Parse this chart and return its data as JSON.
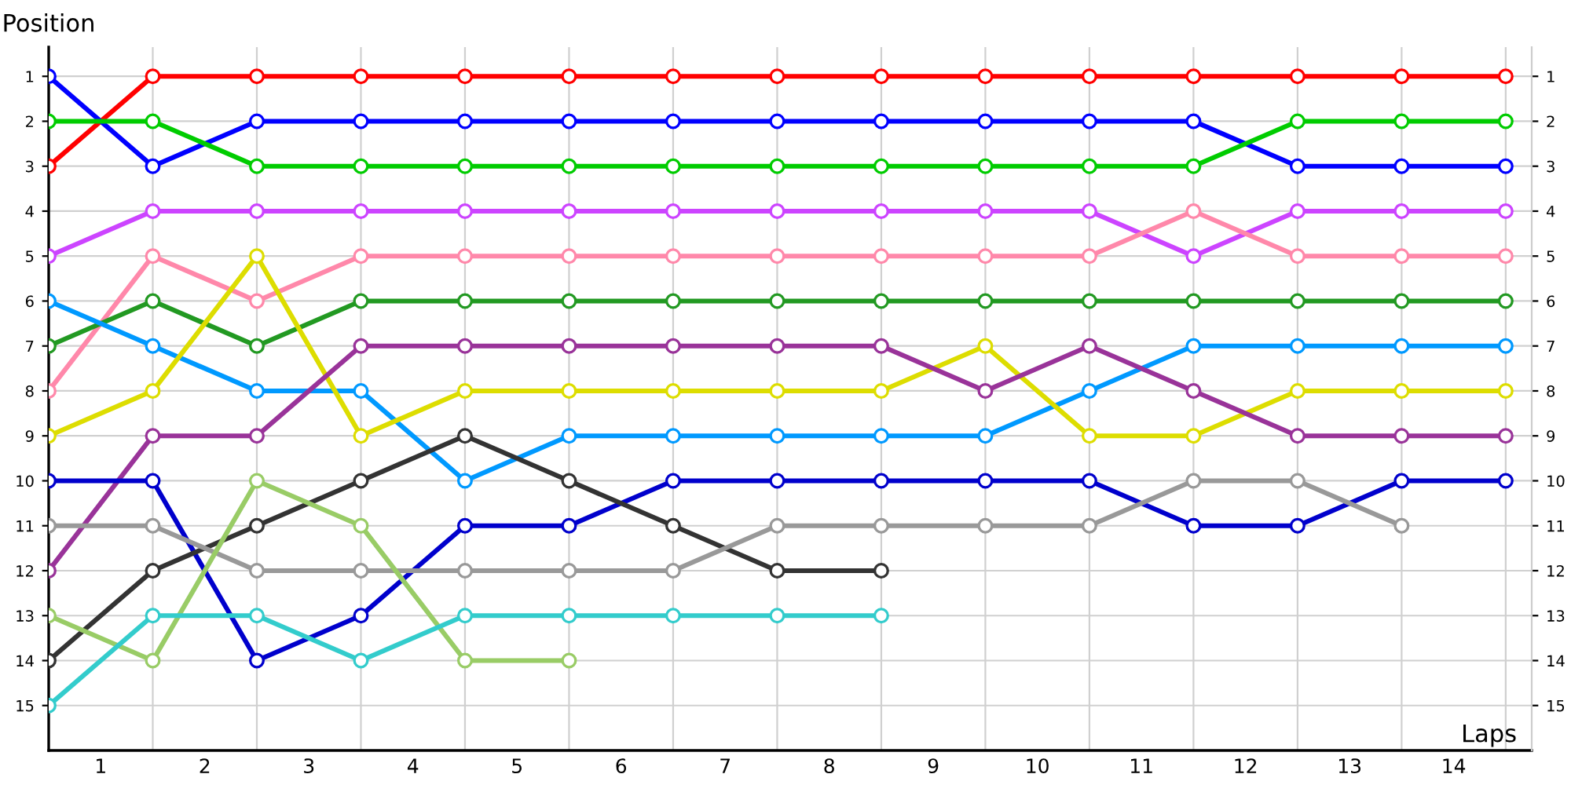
{
  "chart_data": {
    "type": "line",
    "xlabel": "Laps",
    "ylabel": "Position",
    "x": [
      0,
      1,
      2,
      3,
      4,
      5,
      6,
      7,
      8,
      9,
      10,
      11,
      12,
      13,
      14
    ],
    "xlim": [
      0,
      14.25
    ],
    "xticks": [
      {
        "value": 0,
        "label": null
      },
      {
        "value": 0.5,
        "label": "1"
      },
      {
        "value": 1,
        "label": null
      },
      {
        "value": 1.5,
        "label": "2"
      },
      {
        "value": 2,
        "label": null
      },
      {
        "value": 2.5,
        "label": "3"
      },
      {
        "value": 3,
        "label": null
      },
      {
        "value": 3.5,
        "label": "4"
      },
      {
        "value": 4,
        "label": null
      },
      {
        "value": 4.5,
        "label": "5"
      },
      {
        "value": 5,
        "label": null
      },
      {
        "value": 5.5,
        "label": "6"
      },
      {
        "value": 6,
        "label": null
      },
      {
        "value": 6.5,
        "label": "7"
      },
      {
        "value": 7,
        "label": null
      },
      {
        "value": 7.5,
        "label": "8"
      },
      {
        "value": 8,
        "label": null
      },
      {
        "value": 8.5,
        "label": "9"
      },
      {
        "value": 9,
        "label": null
      },
      {
        "value": 9.5,
        "label": "10"
      },
      {
        "value": 10,
        "label": null
      },
      {
        "value": 10.5,
        "label": "11"
      },
      {
        "value": 11,
        "label": null
      },
      {
        "value": 11.5,
        "label": "12"
      },
      {
        "value": 12,
        "label": null
      },
      {
        "value": 12.5,
        "label": "13"
      },
      {
        "value": 13,
        "label": null
      },
      {
        "value": 13.5,
        "label": "14"
      },
      {
        "value": 14,
        "label": null
      }
    ],
    "ylim": [
      16,
      0.35
    ],
    "yticks": [
      1,
      2,
      3,
      4,
      5,
      6,
      7,
      8,
      9,
      10,
      11,
      12,
      13,
      14,
      15
    ],
    "y2lim": [
      16,
      0.35
    ],
    "y2ticks": [
      1,
      2,
      3,
      4,
      5,
      6,
      7,
      8,
      9,
      10,
      11,
      12,
      13,
      14,
      15
    ],
    "grid": true,
    "marker": "circle",
    "line_style": "solid",
    "series": [
      {
        "color": "#ff0000",
        "values": [
          3,
          1,
          1,
          1,
          1,
          1,
          1,
          1,
          1,
          1,
          1,
          1,
          1,
          1,
          1
        ]
      },
      {
        "color": "#0000ff",
        "values": [
          1,
          3,
          2,
          2,
          2,
          2,
          2,
          2,
          2,
          2,
          2,
          2,
          3,
          3,
          3
        ]
      },
      {
        "color": "#00cc00",
        "values": [
          2,
          2,
          3,
          3,
          3,
          3,
          3,
          3,
          3,
          3,
          3,
          3,
          2,
          2,
          2
        ]
      },
      {
        "color": "#cc44ff",
        "values": [
          5,
          4,
          4,
          4,
          4,
          4,
          4,
          4,
          4,
          4,
          4,
          5,
          4,
          4,
          4
        ]
      },
      {
        "color": "#ff88aa",
        "values": [
          8,
          5,
          6,
          5,
          5,
          5,
          5,
          5,
          5,
          5,
          5,
          4,
          5,
          5,
          5
        ]
      },
      {
        "color": "#229922",
        "values": [
          7,
          6,
          7,
          6,
          6,
          6,
          6,
          6,
          6,
          6,
          6,
          6,
          6,
          6,
          6
        ]
      },
      {
        "color": "#0099ff",
        "values": [
          6,
          7,
          8,
          8,
          10,
          9,
          9,
          9,
          9,
          9,
          8,
          7,
          7,
          7,
          7
        ]
      },
      {
        "color": "#dddd00",
        "values": [
          9,
          8,
          5,
          9,
          8,
          8,
          8,
          8,
          8,
          7,
          9,
          9,
          8,
          8,
          8
        ]
      },
      {
        "color": "#993399",
        "values": [
          12,
          9,
          9,
          7,
          7,
          7,
          7,
          7,
          7,
          8,
          7,
          8,
          9,
          9,
          9
        ]
      },
      {
        "color": "#0000cc",
        "values": [
          10,
          10,
          14,
          13,
          11,
          11,
          10,
          10,
          10,
          10,
          10,
          11,
          11,
          10,
          10
        ]
      },
      {
        "color": "#333333",
        "values": [
          14,
          12,
          11,
          10,
          9,
          10,
          11,
          12,
          12,
          null,
          null,
          null,
          null,
          null,
          null
        ]
      },
      {
        "color": "#999999",
        "values": [
          11,
          11,
          12,
          12,
          12,
          12,
          12,
          11,
          11,
          11,
          11,
          10,
          10,
          11,
          null
        ]
      },
      {
        "color": "#99cc66",
        "values": [
          13,
          14,
          10,
          11,
          14,
          14,
          null,
          null,
          null,
          null,
          null,
          null,
          null,
          null,
          null
        ]
      },
      {
        "color": "#33cccc",
        "values": [
          15,
          13,
          13,
          14,
          13,
          13,
          13,
          13,
          13,
          null,
          null,
          null,
          null,
          null,
          null
        ]
      }
    ]
  }
}
